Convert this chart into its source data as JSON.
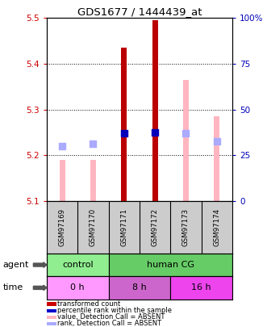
{
  "title": "GDS1677 / 1444439_at",
  "samples": [
    "GSM97169",
    "GSM97170",
    "GSM97171",
    "GSM97172",
    "GSM97173",
    "GSM97174"
  ],
  "ylim_left": [
    5.1,
    5.5
  ],
  "ylim_right": [
    0,
    100
  ],
  "yticks_left": [
    5.1,
    5.2,
    5.3,
    5.4,
    5.5
  ],
  "yticks_right": [
    0,
    25,
    50,
    75,
    100
  ],
  "bar_bottom": 5.1,
  "red_bars": {
    "GSM97171": 5.435,
    "GSM97172": 5.495
  },
  "pink_bars": {
    "GSM97169": 5.19,
    "GSM97170": 5.19,
    "GSM97173": 5.365,
    "GSM97174": 5.285
  },
  "blue_dots": {
    "GSM97171": 5.248,
    "GSM97172": 5.25
  },
  "light_blue_dots": {
    "GSM97169": 5.22,
    "GSM97170": 5.225,
    "GSM97173": 5.248,
    "GSM97174": 5.23
  },
  "agent_groups": [
    {
      "label": "control",
      "cols": [
        0,
        1
      ],
      "color": "#90EE90"
    },
    {
      "label": "human CG",
      "cols": [
        2,
        3,
        4,
        5
      ],
      "color": "#66CC66"
    }
  ],
  "time_groups": [
    {
      "label": "0 h",
      "cols": [
        0,
        1
      ],
      "color": "#FF99FF"
    },
    {
      "label": "8 h",
      "cols": [
        2,
        3
      ],
      "color": "#CC66CC"
    },
    {
      "label": "16 h",
      "cols": [
        4,
        5
      ],
      "color": "#EE44EE"
    }
  ],
  "legend_items": [
    {
      "label": "transformed count",
      "color": "#CC0000"
    },
    {
      "label": "percentile rank within the sample",
      "color": "#0000CC"
    },
    {
      "label": "value, Detection Call = ABSENT",
      "color": "#FFB6C1"
    },
    {
      "label": "rank, Detection Call = ABSENT",
      "color": "#AAAAFF"
    }
  ],
  "bar_width": 0.18,
  "dot_size": 30,
  "left_axis_color": "#CC0000",
  "right_axis_color": "#0000BB",
  "grid_color": "black",
  "bg_plot": "white",
  "bg_sample": "#CCCCCC"
}
